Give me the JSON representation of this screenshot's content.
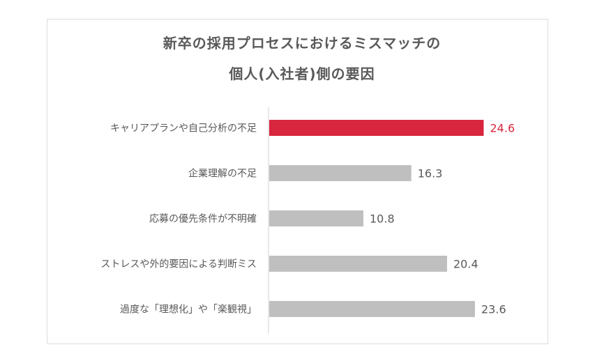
{
  "chart_data": {
    "type": "bar",
    "orientation": "horizontal",
    "title_lines": [
      "新卒の採用プロセスにおけるミスマッチの",
      "個人(入社者)側の要因"
    ],
    "categories": [
      "キャリアプランや自己分析の不足",
      "企業理解の不足",
      "応募の優先条件が不明確",
      "ストレスや外的要因による判断ミス",
      "過度な「理想化」や「楽観視」"
    ],
    "values": [
      24.6,
      16.3,
      10.8,
      20.4,
      23.6
    ],
    "value_labels": [
      "24.6",
      "16.3",
      "10.8",
      "20.4",
      "23.6"
    ],
    "highlight_index": 0,
    "xlim": [
      0,
      28
    ],
    "grid": false,
    "legend": "none",
    "colors": {
      "highlight": "#d7263d",
      "default": "#bfbfbf",
      "label": "#595959",
      "axis": "#d0d0d0"
    }
  }
}
